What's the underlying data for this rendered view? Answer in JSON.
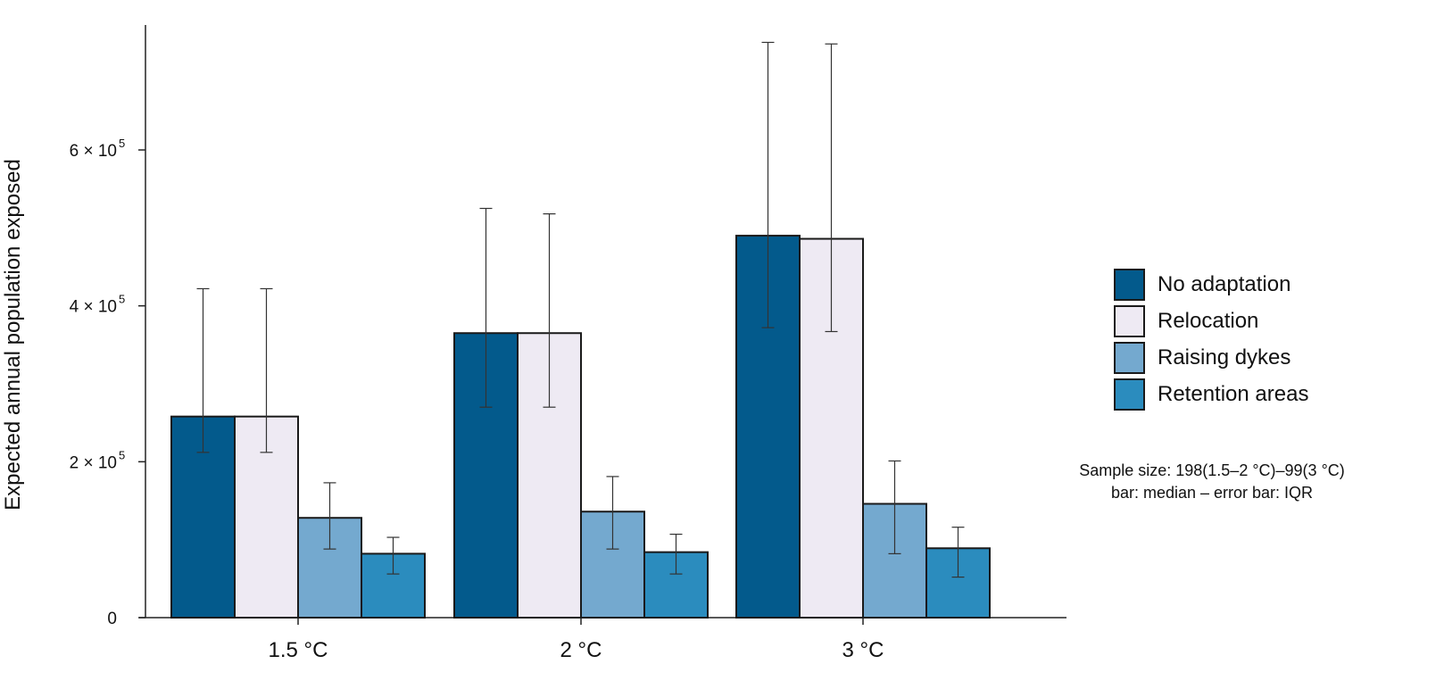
{
  "chart_data": {
    "type": "bar",
    "categories": [
      "1.5 °C",
      "2 °C",
      "3 °C"
    ],
    "ylabel": "Expected annual population exposed",
    "xlabel": "",
    "ylim": [
      0,
      770000
    ],
    "yticks": [
      {
        "value": 0,
        "base": "0",
        "exp": ""
      },
      {
        "value": 200000,
        "base": "2 × 10",
        "exp": "5"
      },
      {
        "value": 400000,
        "base": "4 × 10",
        "exp": "5"
      },
      {
        "value": 600000,
        "base": "6 × 10",
        "exp": "5"
      }
    ],
    "series": [
      {
        "name": "No adaptation",
        "color": "#035a8c",
        "values": [
          258000,
          365000,
          490000
        ],
        "err_low": [
          212000,
          270000,
          372000
        ],
        "err_high": [
          422000,
          525000,
          738000
        ]
      },
      {
        "name": "Relocation",
        "color": "#eeeaf3",
        "values": [
          258000,
          365000,
          486000
        ],
        "err_low": [
          212000,
          270000,
          367000
        ],
        "err_high": [
          422000,
          518000,
          736000
        ]
      },
      {
        "name": "Raising dykes",
        "color": "#74a9cf",
        "values": [
          128000,
          136000,
          146000
        ],
        "err_low": [
          88000,
          88000,
          82000
        ],
        "err_high": [
          173000,
          181000,
          201000
        ]
      },
      {
        "name": "Retention areas",
        "color": "#2b8cbe",
        "values": [
          82000,
          84000,
          89000
        ],
        "err_low": [
          56000,
          56000,
          52000
        ],
        "err_high": [
          103000,
          107000,
          116000
        ]
      }
    ],
    "legend_position": "right"
  },
  "annotation": {
    "line1": "Sample size: 198(1.5–2 °C)–99(3 °C)",
    "line2": "bar: median – error bar: IQR"
  }
}
